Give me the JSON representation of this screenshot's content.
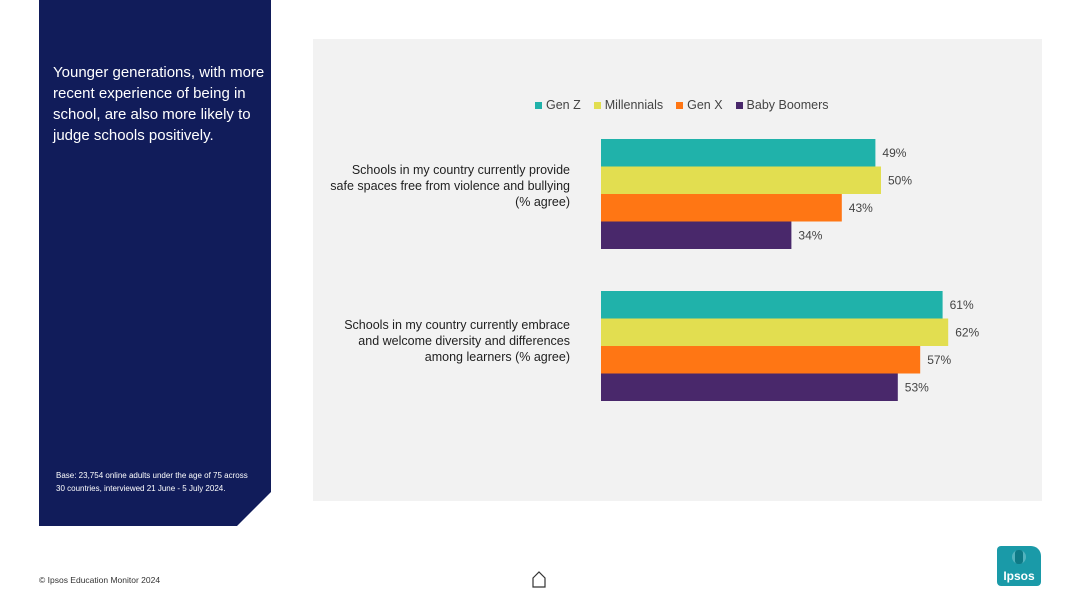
{
  "side_panel": {
    "heading": "Younger generations, with more recent experience of being in school, are also more likely to judge schools positively.",
    "base_note": "Base: 23,754 online adults under the age of 75 across 30 countries, interviewed 21 June - 5 July 2024."
  },
  "footer": {
    "copyright": "© Ipsos Education Monitor 2024",
    "home_icon": "home-icon"
  },
  "logo": {
    "text": "Ipsos"
  },
  "colors": {
    "gen_z": "#20b2aa",
    "millennials": "#e2de50",
    "gen_x": "#ff7614",
    "baby_boomers": "#49286b",
    "panel": "#111c5a",
    "chart_bg": "#f2f2f2"
  },
  "chart_data": {
    "type": "bar",
    "orientation": "horizontal",
    "categories": [
      "Schools in my country currently provide safe spaces free from violence and bullying (% agree)",
      "Schools in my country currently embrace and welcome diversity and differences among learners (% agree)"
    ],
    "series": [
      {
        "name": "Gen Z",
        "values": [
          49,
          61
        ],
        "color": "#20b2aa"
      },
      {
        "name": "Millennials",
        "values": [
          50,
          62
        ],
        "color": "#e2de50"
      },
      {
        "name": "Gen X",
        "values": [
          43,
          57
        ],
        "color": "#ff7614"
      },
      {
        "name": "Baby Boomers",
        "values": [
          34,
          53
        ],
        "color": "#49286b"
      }
    ],
    "value_suffix": "%",
    "xlim": [
      0,
      100
    ],
    "grid": false,
    "legend_position": "top"
  }
}
